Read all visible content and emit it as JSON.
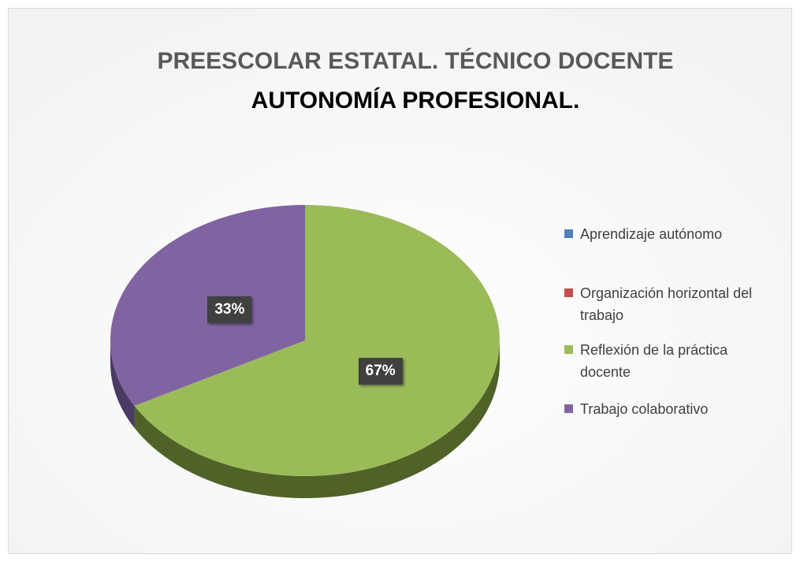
{
  "chart_data": {
    "type": "pie",
    "title": "PREESCOLAR ESTATAL. TÉCNICO DOCENTE",
    "subtitle": "AUTONOMÍA PROFESIONAL.",
    "categories": [
      "Aprendizaje autónomo",
      "Organización horizontal del trabajo",
      "Reflexión de la práctica docente",
      "Trabajo colaborativo"
    ],
    "values": [
      0,
      0,
      67,
      33
    ],
    "value_labels": [
      null,
      null,
      "67%",
      "33%"
    ],
    "colors": [
      "#4f81bd",
      "#c0504d",
      "#9bbb59",
      "#8064a2"
    ],
    "side_colors": [
      "#2c4d75",
      "#772c2a",
      "#4f6228",
      "#4b3a63"
    ],
    "legend": "right"
  }
}
